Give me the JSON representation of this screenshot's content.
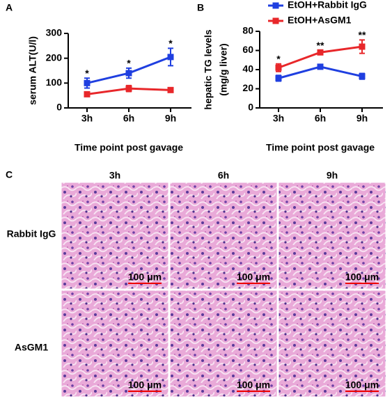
{
  "panel_labels": [
    "A",
    "B",
    "C"
  ],
  "chart_data": [
    {
      "type": "line",
      "ylabel": "serum ALT(U/l)",
      "xlabel": "Time point post gavage",
      "categories": [
        "3h",
        "6h",
        "9h"
      ],
      "series": [
        {
          "color": "#1f3fe0",
          "values": [
            100,
            140,
            205
          ],
          "errors": [
            20,
            20,
            35
          ]
        },
        {
          "color": "#e8272a",
          "values": [
            55,
            78,
            72
          ],
          "errors": [
            8,
            12,
            8
          ]
        }
      ],
      "annotations": [
        "*",
        "*",
        "*"
      ],
      "ylim": [
        0,
        300
      ],
      "yticks": [
        0,
        100,
        200,
        300
      ]
    },
    {
      "type": "line",
      "ylabel": [
        "hepatic TG levels",
        "(mg/g liver)"
      ],
      "xlabel": "Time point post gavage",
      "categories": [
        "3h",
        "6h",
        "9h"
      ],
      "series": [
        {
          "name": "EtOH+Rabbit IgG",
          "color": "#1f3fe0",
          "values": [
            31,
            43,
            33
          ],
          "errors": [
            3,
            2,
            3
          ]
        },
        {
          "name": "EtOH+AsGM1",
          "color": "#e8272a",
          "values": [
            42,
            58,
            64
          ],
          "errors": [
            4,
            2,
            7
          ]
        }
      ],
      "annotations": [
        "*",
        "**",
        "**"
      ],
      "legend": "top",
      "ylim": [
        0,
        80
      ],
      "yticks": [
        0,
        20,
        40,
        60,
        80
      ]
    }
  ],
  "histology": {
    "columns": [
      "3h",
      "6h",
      "9h"
    ],
    "rows": [
      "Rabbit IgG",
      "AsGM1"
    ],
    "scale_bar": "100 μm"
  }
}
